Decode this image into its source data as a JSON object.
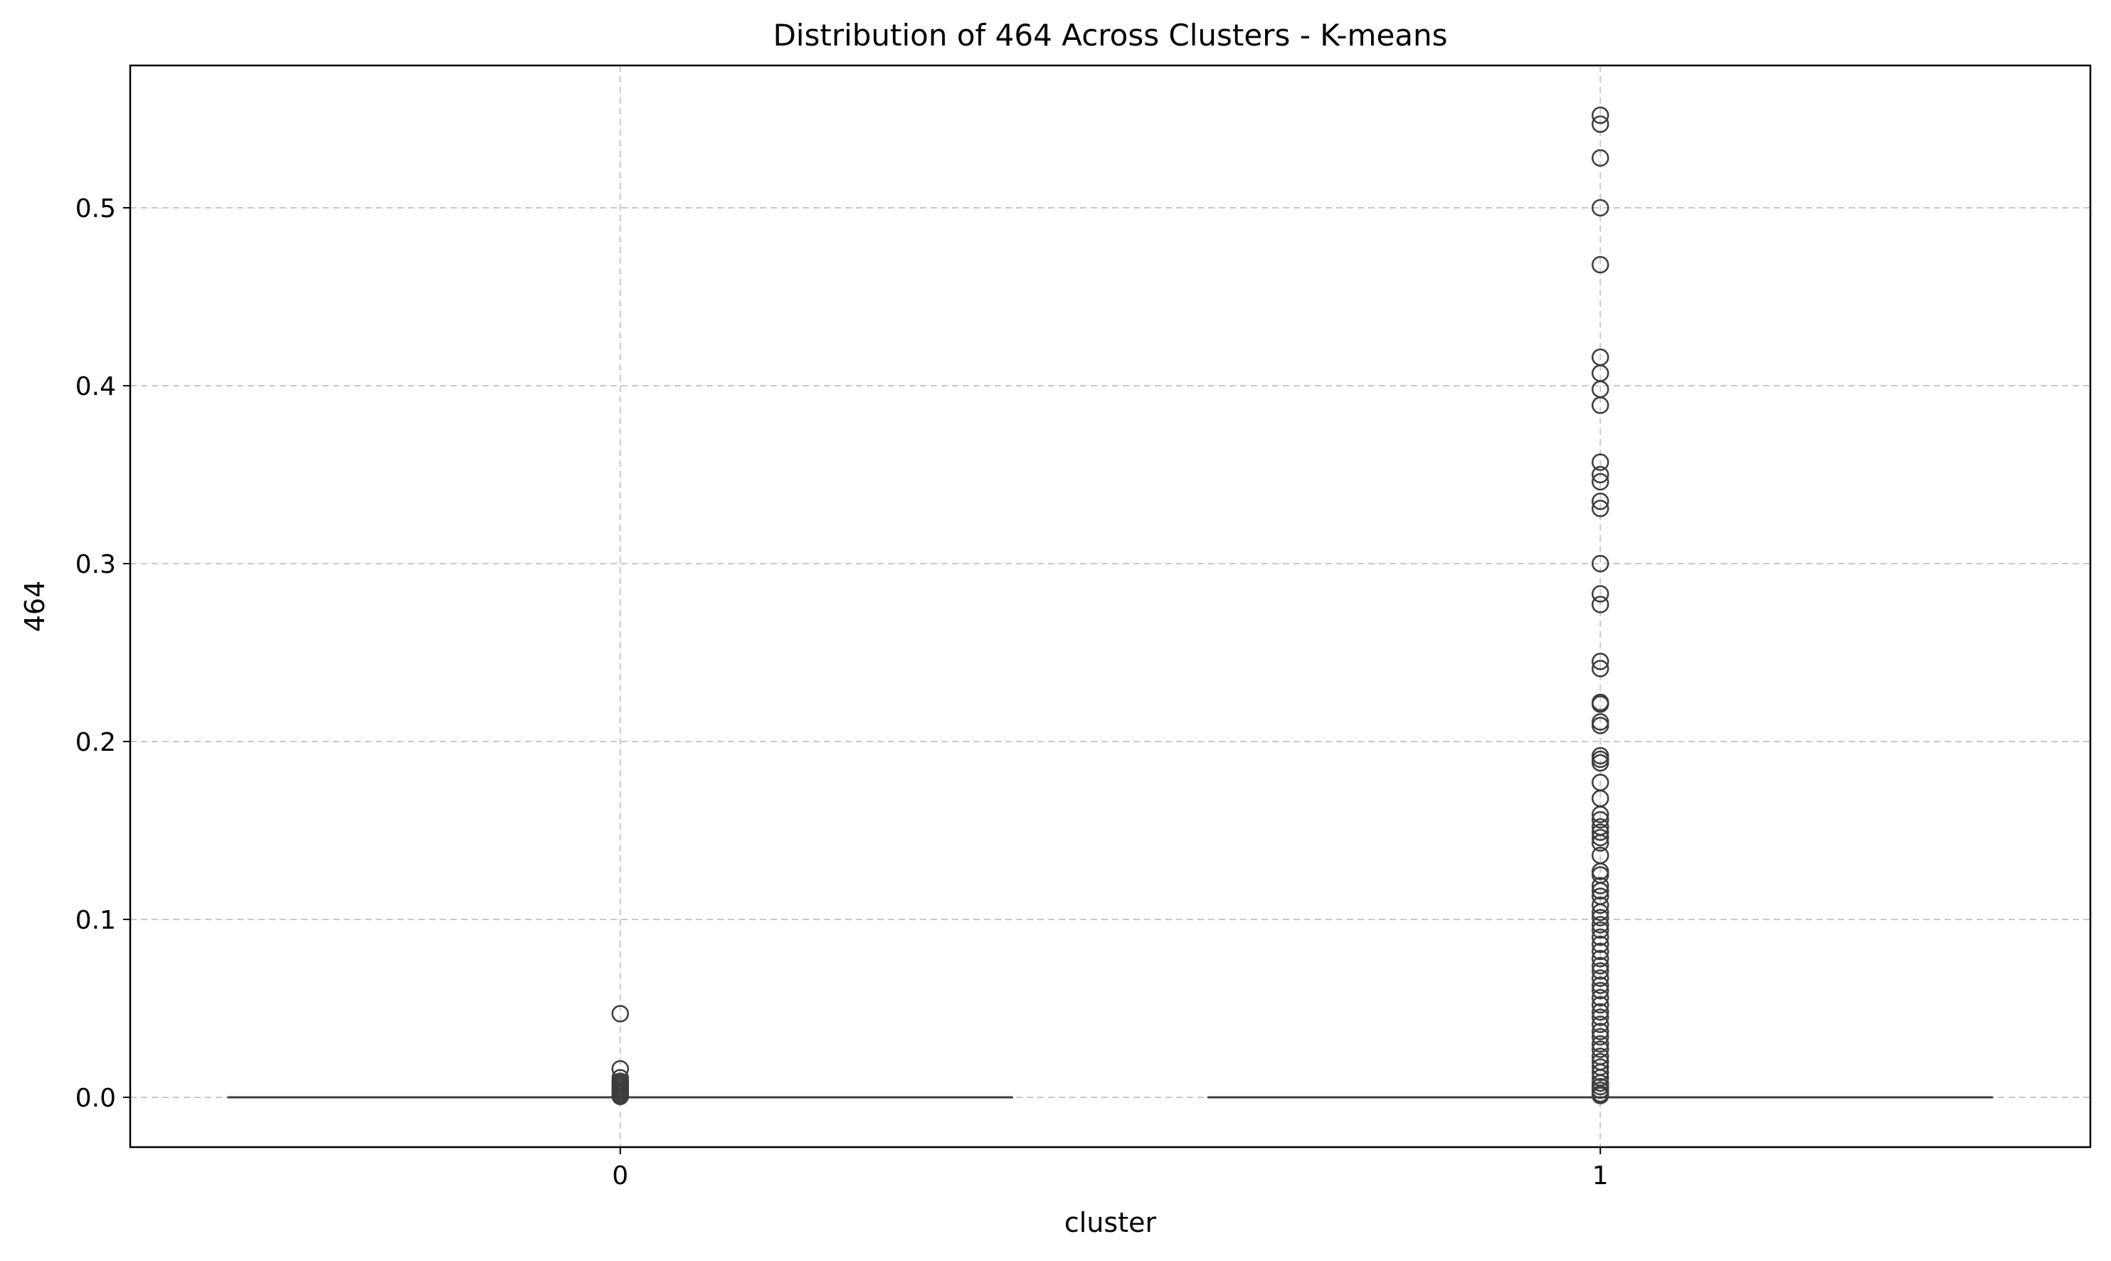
{
  "chart_data": {
    "type": "box",
    "title": "Distribution of 464 Across Clusters - K-means",
    "xlabel": "cluster",
    "ylabel": "464",
    "categories": [
      "0",
      "1"
    ],
    "ylim": [
      -0.028,
      0.58
    ],
    "yticks": [
      0.0,
      0.1,
      0.2,
      0.3,
      0.4,
      0.5
    ],
    "ytick_labels": [
      "0.0",
      "0.1",
      "0.2",
      "0.3",
      "0.4",
      "0.5"
    ],
    "grid": true,
    "grid_style": "dashed",
    "boxes": [
      {
        "category": "0",
        "q1": 0.0,
        "median": 0.0,
        "q3": 0.0,
        "whisker_low": 0.0,
        "whisker_high": 0.0,
        "outliers": [
          0.047,
          0.016,
          0.011,
          0.009,
          0.008,
          0.007,
          0.006,
          0.005,
          0.004,
          0.003,
          0.002,
          0.001,
          0.0005
        ]
      },
      {
        "category": "1",
        "q1": 0.0,
        "median": 0.0,
        "q3": 0.0,
        "whisker_low": 0.0,
        "whisker_high": 0.0,
        "outliers": [
          0.552,
          0.547,
          0.528,
          0.5,
          0.468,
          0.416,
          0.407,
          0.398,
          0.389,
          0.357,
          0.35,
          0.346,
          0.335,
          0.331,
          0.3,
          0.283,
          0.277,
          0.245,
          0.241,
          0.222,
          0.221,
          0.211,
          0.209,
          0.192,
          0.19,
          0.188,
          0.177,
          0.168,
          0.159,
          0.156,
          0.152,
          0.149,
          0.146,
          0.143,
          0.136,
          0.127,
          0.125,
          0.119,
          0.116,
          0.113,
          0.108,
          0.104,
          0.101,
          0.097,
          0.094,
          0.09,
          0.086,
          0.082,
          0.078,
          0.074,
          0.071,
          0.067,
          0.063,
          0.06,
          0.056,
          0.052,
          0.048,
          0.045,
          0.041,
          0.037,
          0.034,
          0.03,
          0.027,
          0.023,
          0.02,
          0.017,
          0.014,
          0.011,
          0.008,
          0.006,
          0.004,
          0.002,
          0.001
        ]
      }
    ],
    "colors": {
      "box_line": "#3d3d3d",
      "outlier_edge": "#3d3d3d",
      "grid": "#c8c8c8",
      "axis": "#000000"
    }
  }
}
